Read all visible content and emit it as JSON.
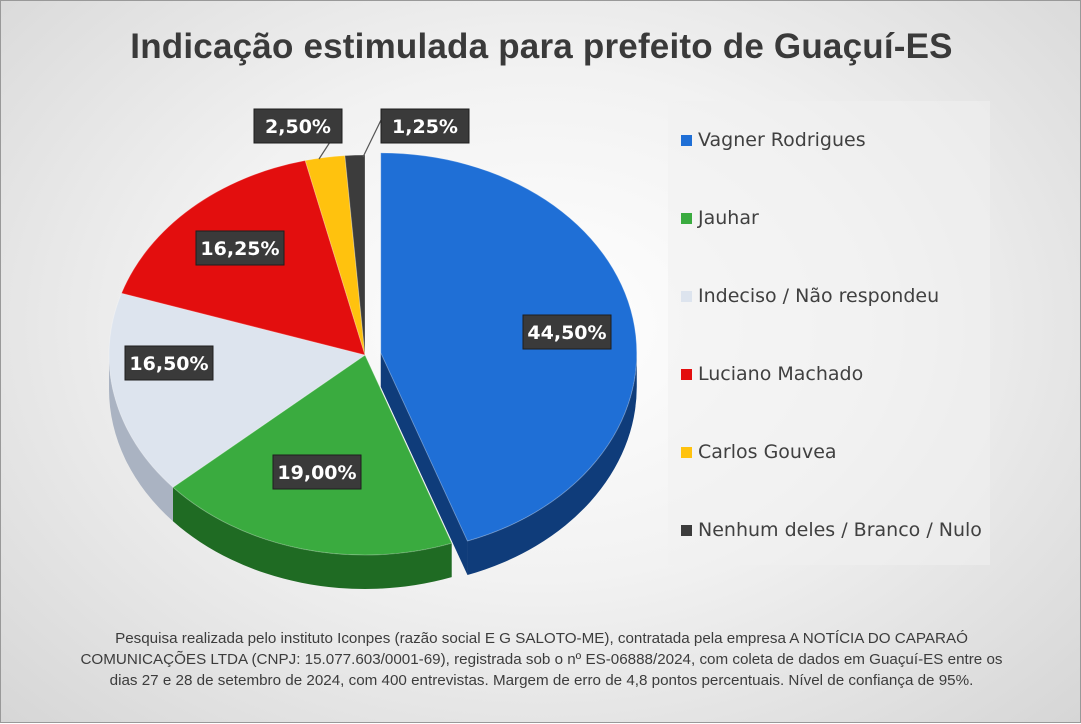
{
  "chart_data": {
    "type": "pie",
    "title": "Indicação estimulada para prefeito de Guaçuí-ES",
    "slices": [
      {
        "name": "Vagner Rodrigues",
        "value": 44.5,
        "label": "44,50%",
        "color": "#1f6fd6",
        "side": "#0f3c7a",
        "explode": true
      },
      {
        "name": "Jauhar",
        "value": 19.0,
        "label": "19,00%",
        "color": "#3aab3f",
        "side": "#1f6b23",
        "explode": false
      },
      {
        "name": "Indeciso / Não respondeu",
        "value": 16.5,
        "label": "16,50%",
        "color": "#dde4ee",
        "side": "#aab3c2",
        "explode": false
      },
      {
        "name": "Luciano Machado",
        "value": 16.25,
        "label": "16,25%",
        "color": "#e30e0e",
        "side": "#8f0606",
        "explode": false
      },
      {
        "name": "Carlos Gouvea",
        "value": 2.5,
        "label": "2,50%",
        "color": "#ffc20e",
        "side": "#b88a00",
        "explode": false
      },
      {
        "name": "Nenhum deles / Branco / Nulo",
        "value": 1.25,
        "label": "1,25%",
        "color": "#3c3c3c",
        "side": "#1a1a1a",
        "explode": false
      }
    ],
    "legend_position": "right",
    "start_angle": "top",
    "direction": "clockwise"
  },
  "footnote": {
    "line1": "Pesquisa realizada pelo instituto Iconpes (razão social E G SALOTO-ME), contratada pela empresa A NOTÍCIA DO CAPARAÓ",
    "line2": "COMUNICAÇÕES LTDA (CNPJ: 15.077.603/0001-69), registrada sob o nº ES-06888/2024, com coleta de dados em Guaçuí-ES entre os",
    "line3": "dias 27 e 28 de setembro de 2024, com 400 entrevistas. Margem de erro de 4,8 pontos percentuais. Nível de confiança de 95%."
  }
}
